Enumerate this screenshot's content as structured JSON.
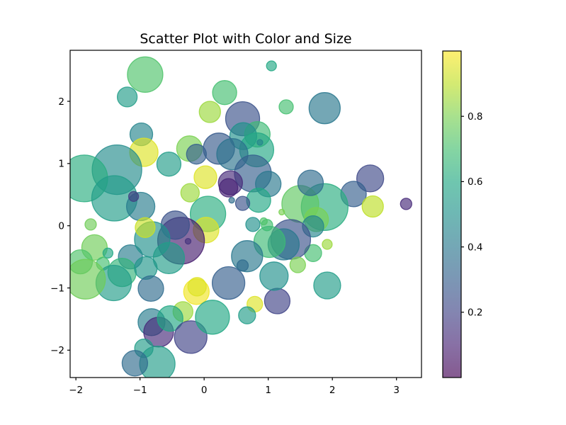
{
  "figure": {
    "background": "#ffffff",
    "frame_color": "#000000",
    "text_color": "#000000"
  },
  "chart_data": {
    "type": "scatter",
    "title": "Scatter Plot with Color and Size",
    "xlabel": "",
    "ylabel": "",
    "xlim": [
      -2.09,
      3.39
    ],
    "ylim": [
      -2.44,
      2.82
    ],
    "xticks": [
      -2,
      -1,
      0,
      1,
      2,
      3
    ],
    "yticks": [
      -2,
      -1,
      0,
      1,
      2
    ],
    "grid": false,
    "legend": null,
    "marker_alpha": 0.65,
    "colorbar": {
      "min": 0.0,
      "max": 1.0,
      "ticks": [
        0.2,
        0.4,
        0.6,
        0.8
      ],
      "side": "right"
    },
    "colormap": {
      "name": "viridis",
      "stops": [
        [
          0.0,
          "#440154"
        ],
        [
          0.1,
          "#482475"
        ],
        [
          0.2,
          "#414487"
        ],
        [
          0.3,
          "#355f8d"
        ],
        [
          0.4,
          "#2a788e"
        ],
        [
          0.5,
          "#21918c"
        ],
        [
          0.6,
          "#22a884"
        ],
        [
          0.7,
          "#44bf70"
        ],
        [
          0.8,
          "#7ad151"
        ],
        [
          0.9,
          "#bddf26"
        ],
        [
          1.0,
          "#fde725"
        ]
      ]
    },
    "points": [
      {
        "x": -0.92,
        "y": 2.43,
        "r": 25,
        "c": 0.72
      },
      {
        "x": -1.2,
        "y": 2.07,
        "r": 14,
        "c": 0.55
      },
      {
        "x": 1.05,
        "y": 2.57,
        "r": 7,
        "c": 0.6
      },
      {
        "x": 0.32,
        "y": 2.14,
        "r": 17,
        "c": 0.7
      },
      {
        "x": 0.09,
        "y": 1.83,
        "r": 15,
        "c": 0.85
      },
      {
        "x": 1.28,
        "y": 1.91,
        "r": 10,
        "c": 0.7
      },
      {
        "x": 1.88,
        "y": 1.89,
        "r": 22,
        "c": 0.4
      },
      {
        "x": 0.6,
        "y": 1.72,
        "r": 24,
        "c": 0.25
      },
      {
        "x": -0.98,
        "y": 1.47,
        "r": 16,
        "c": 0.45
      },
      {
        "x": -0.94,
        "y": 1.18,
        "r": 20,
        "c": 0.95
      },
      {
        "x": 0.83,
        "y": 1.47,
        "r": 18,
        "c": 0.68
      },
      {
        "x": 0.61,
        "y": 1.44,
        "r": 19,
        "c": 0.5
      },
      {
        "x": 0.82,
        "y": 1.22,
        "r": 24,
        "c": 0.6
      },
      {
        "x": 0.87,
        "y": 1.34,
        "r": 4,
        "c": 0.45
      },
      {
        "x": 0.23,
        "y": 1.24,
        "r": 22,
        "c": 0.28
      },
      {
        "x": 0.44,
        "y": 1.15,
        "r": 22,
        "c": 0.38
      },
      {
        "x": -0.23,
        "y": 1.24,
        "r": 18,
        "c": 0.8
      },
      {
        "x": -0.12,
        "y": 1.15,
        "r": 14,
        "c": 0.3
      },
      {
        "x": 0.02,
        "y": 0.78,
        "r": 16,
        "c": 0.95
      },
      {
        "x": -0.55,
        "y": 0.99,
        "r": 17,
        "c": 0.55
      },
      {
        "x": -1.36,
        "y": 0.9,
        "r": 35,
        "c": 0.48
      },
      {
        "x": -1.87,
        "y": 0.76,
        "r": 33,
        "c": 0.62
      },
      {
        "x": -1.4,
        "y": 0.44,
        "r": 32,
        "c": 0.55
      },
      {
        "x": -0.99,
        "y": 0.31,
        "r": 20,
        "c": 0.42
      },
      {
        "x": -1.1,
        "y": 0.47,
        "r": 7,
        "c": 0.18
      },
      {
        "x": -0.22,
        "y": 0.53,
        "r": 13,
        "c": 0.85
      },
      {
        "x": 2.59,
        "y": 0.76,
        "r": 19,
        "c": 0.22
      },
      {
        "x": 2.33,
        "y": 0.51,
        "r": 18,
        "c": 0.3
      },
      {
        "x": 2.63,
        "y": 0.31,
        "r": 15,
        "c": 0.9
      },
      {
        "x": 3.15,
        "y": 0.35,
        "r": 8,
        "c": 0.12
      },
      {
        "x": 1.88,
        "y": 0.3,
        "r": 33,
        "c": 0.62
      },
      {
        "x": 1.5,
        "y": 0.35,
        "r": 26,
        "c": 0.75
      },
      {
        "x": 1.66,
        "y": 0.69,
        "r": 18,
        "c": 0.35
      },
      {
        "x": 0.76,
        "y": 0.84,
        "r": 26,
        "c": 0.3
      },
      {
        "x": 0.41,
        "y": 0.69,
        "r": 17,
        "c": 0.12
      },
      {
        "x": 0.38,
        "y": 0.61,
        "r": 13,
        "c": 0.1
      },
      {
        "x": 1.0,
        "y": 0.67,
        "r": 18,
        "c": 0.4
      },
      {
        "x": 0.85,
        "y": 0.41,
        "r": 17,
        "c": 0.6
      },
      {
        "x": 0.43,
        "y": 0.41,
        "r": 4,
        "c": 0.35
      },
      {
        "x": 0.6,
        "y": 0.36,
        "r": 10,
        "c": 0.25
      },
      {
        "x": 0.06,
        "y": 0.19,
        "r": 25,
        "c": 0.62
      },
      {
        "x": -1.77,
        "y": 0.02,
        "r": 8,
        "c": 0.78
      },
      {
        "x": 0.76,
        "y": 0.02,
        "r": 10,
        "c": 0.5
      },
      {
        "x": 0.98,
        "y": 0.01,
        "r": 8,
        "c": 0.7
      },
      {
        "x": 0.93,
        "y": 0.07,
        "r": 5,
        "c": 0.72
      },
      {
        "x": 1.21,
        "y": 0.22,
        "r": 4,
        "c": 0.8
      },
      {
        "x": 1.75,
        "y": 0.1,
        "r": 17,
        "c": 0.8
      },
      {
        "x": 1.7,
        "y": -0.01,
        "r": 15,
        "c": 0.45
      },
      {
        "x": 1.92,
        "y": -0.3,
        "r": 7,
        "c": 0.85
      },
      {
        "x": 1.7,
        "y": -0.44,
        "r": 12,
        "c": 0.7
      },
      {
        "x": 0.03,
        "y": -0.07,
        "r": 18,
        "c": 0.95
      },
      {
        "x": 1.35,
        "y": -0.22,
        "r": 28,
        "c": 0.25
      },
      {
        "x": 1.24,
        "y": -0.3,
        "r": 22,
        "c": 0.4
      },
      {
        "x": 1.02,
        "y": -0.26,
        "r": 22,
        "c": 0.68
      },
      {
        "x": 0.67,
        "y": -0.49,
        "r": 22,
        "c": 0.4
      },
      {
        "x": -1.71,
        "y": -0.35,
        "r": 18,
        "c": 0.78
      },
      {
        "x": -1.93,
        "y": -0.58,
        "r": 17,
        "c": 0.72
      },
      {
        "x": -1.5,
        "y": -0.44,
        "r": 7,
        "c": 0.6
      },
      {
        "x": -1.15,
        "y": -0.5,
        "r": 17,
        "c": 0.42
      },
      {
        "x": -1.58,
        "y": -0.61,
        "r": 9,
        "c": 0.7
      },
      {
        "x": -0.36,
        "y": -0.24,
        "r": 33,
        "c": 0.08
      },
      {
        "x": -0.25,
        "y": -0.25,
        "r": 4,
        "c": 0.15
      },
      {
        "x": -0.45,
        "y": 0.01,
        "r": 20,
        "c": 0.25
      },
      {
        "x": -0.81,
        "y": -0.22,
        "r": 25,
        "c": 0.5
      },
      {
        "x": -0.92,
        "y": -0.03,
        "r": 14,
        "c": 0.92
      },
      {
        "x": -0.55,
        "y": -0.52,
        "r": 22,
        "c": 0.55
      },
      {
        "x": -1.28,
        "y": -0.75,
        "r": 20,
        "c": 0.65
      },
      {
        "x": -1.41,
        "y": -0.92,
        "r": 25,
        "c": 0.55
      },
      {
        "x": -1.85,
        "y": -0.86,
        "r": 28,
        "c": 0.78
      },
      {
        "x": -0.91,
        "y": -0.68,
        "r": 16,
        "c": 0.52
      },
      {
        "x": -0.83,
        "y": -1.01,
        "r": 18,
        "c": 0.35
      },
      {
        "x": -0.12,
        "y": -1.06,
        "r": 18,
        "c": 0.98
      },
      {
        "x": -0.33,
        "y": -1.38,
        "r": 14,
        "c": 0.85
      },
      {
        "x": 0.79,
        "y": -1.26,
        "r": 11,
        "c": 0.95
      },
      {
        "x": 1.14,
        "y": -1.21,
        "r": 18,
        "c": 0.2
      },
      {
        "x": 1.09,
        "y": -0.81,
        "r": 20,
        "c": 0.5
      },
      {
        "x": 0.38,
        "y": -0.92,
        "r": 23,
        "c": 0.3
      },
      {
        "x": -0.11,
        "y": -0.98,
        "r": 13,
        "c": 0.95
      },
      {
        "x": 0.6,
        "y": -0.64,
        "r": 8,
        "c": 0.35
      },
      {
        "x": 1.46,
        "y": -0.63,
        "r": 11,
        "c": 0.8
      },
      {
        "x": 1.92,
        "y": -0.96,
        "r": 19,
        "c": 0.55
      },
      {
        "x": 0.67,
        "y": -1.44,
        "r": 12,
        "c": 0.55
      },
      {
        "x": -0.82,
        "y": -1.55,
        "r": 19,
        "c": 0.42
      },
      {
        "x": -0.71,
        "y": -1.71,
        "r": 21,
        "c": 0.12
      },
      {
        "x": -0.53,
        "y": -1.49,
        "r": 18,
        "c": 0.6
      },
      {
        "x": -0.21,
        "y": -1.79,
        "r": 23,
        "c": 0.2
      },
      {
        "x": 0.13,
        "y": -1.47,
        "r": 24,
        "c": 0.6
      },
      {
        "x": -0.94,
        "y": -1.97,
        "r": 13,
        "c": 0.55
      },
      {
        "x": -0.73,
        "y": -2.22,
        "r": 25,
        "c": 0.55
      },
      {
        "x": -1.08,
        "y": -2.21,
        "r": 18,
        "c": 0.35
      }
    ]
  }
}
